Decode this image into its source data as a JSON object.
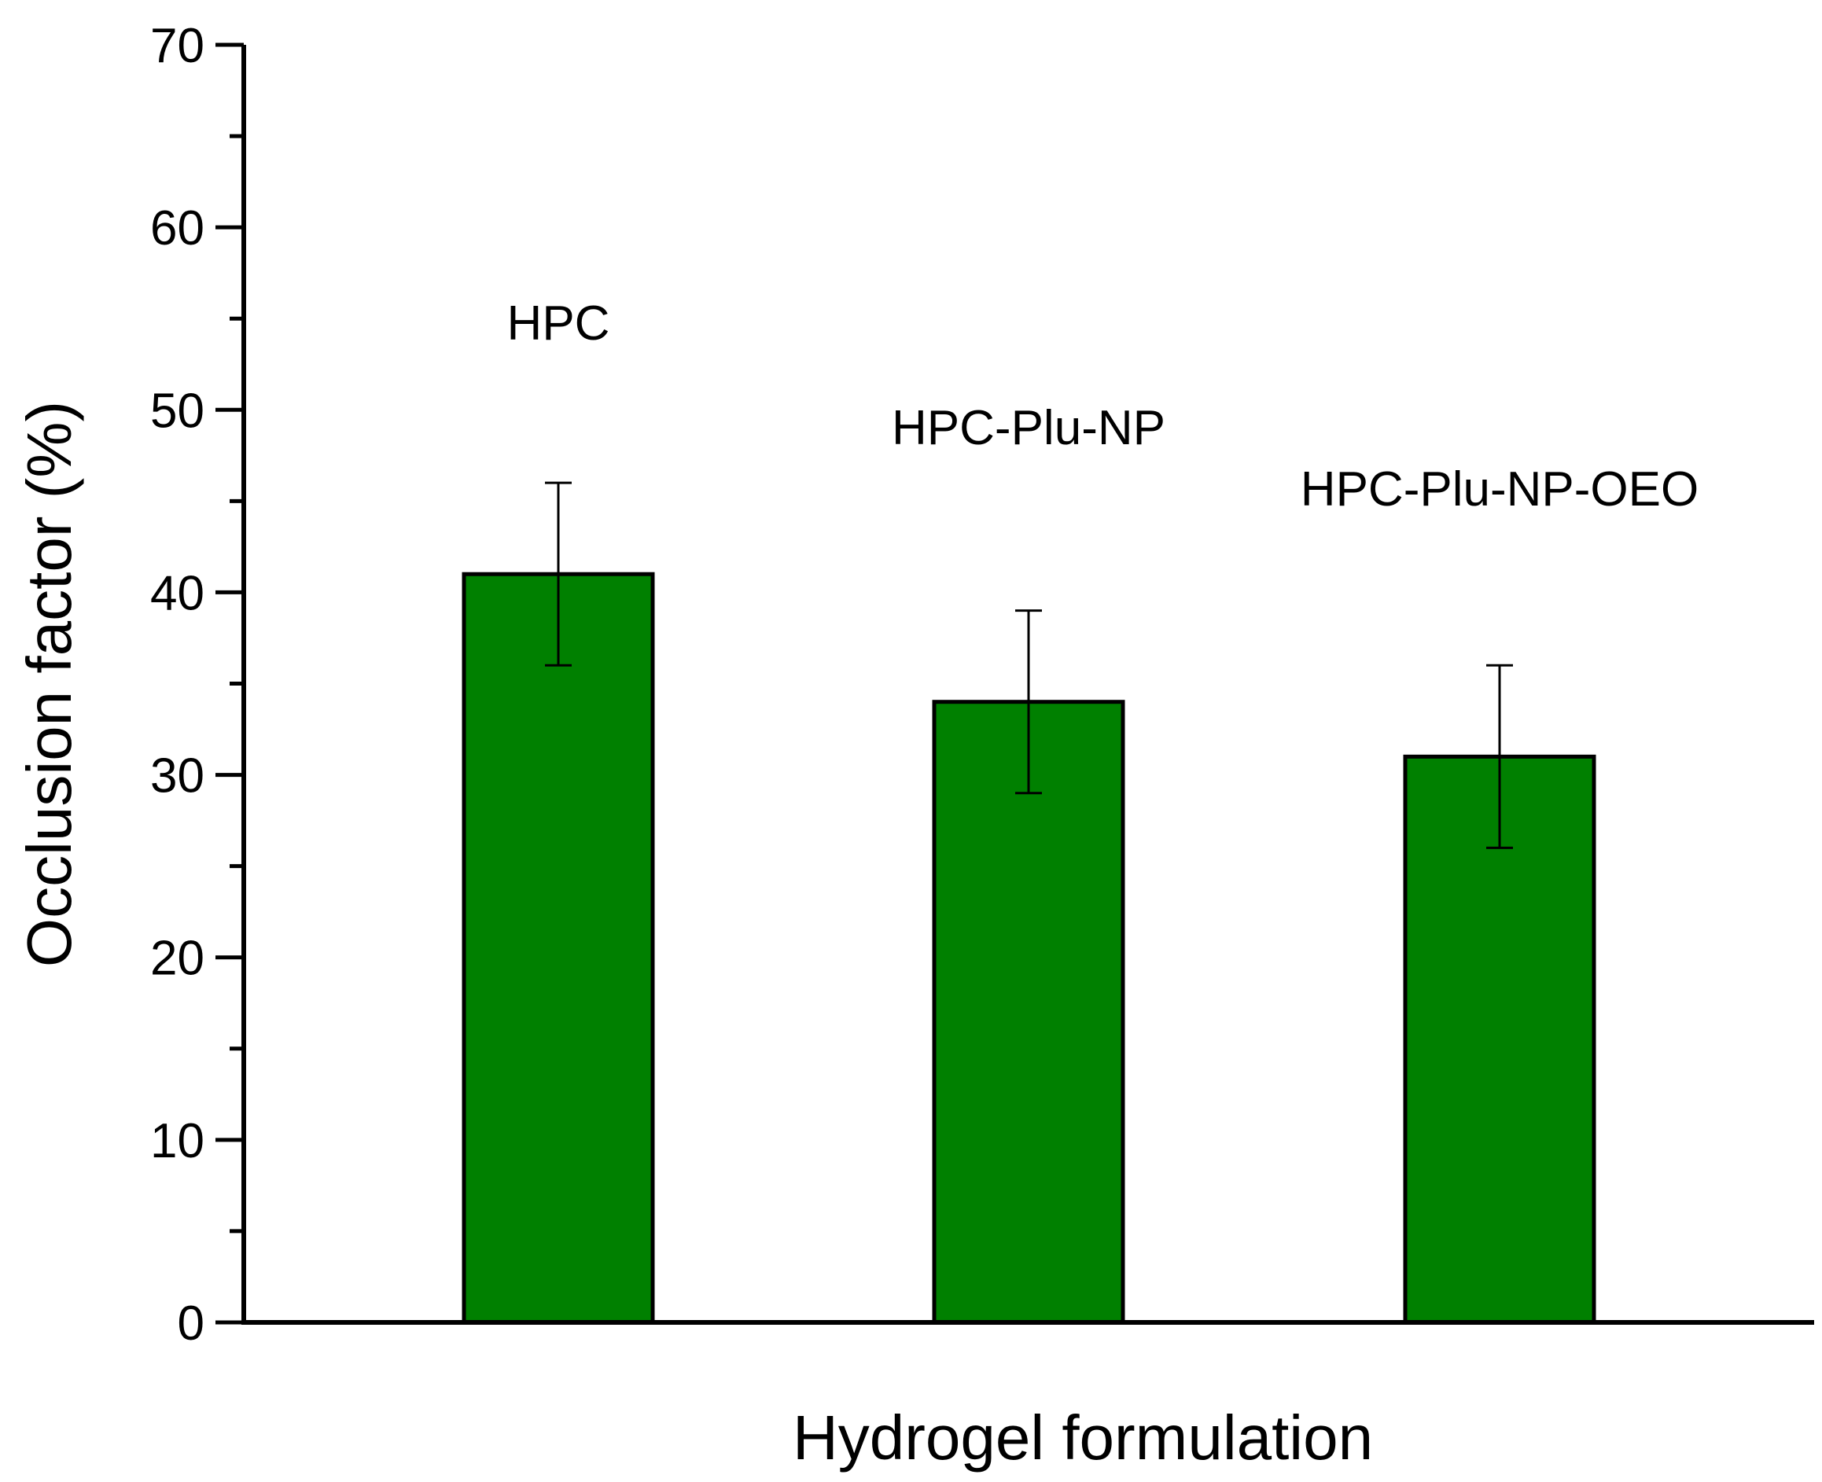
{
  "chart_data": {
    "type": "bar",
    "categories": [
      "HPC",
      "HPC-Plu-NP",
      "HPC-Plu-NP-OEO"
    ],
    "values": [
      41,
      34,
      31
    ],
    "errors": [
      5,
      5,
      5
    ],
    "xlabel": "Hydrogel formulation",
    "ylabel": "Occlusion factor (%)",
    "ylim": [
      0,
      70
    ],
    "yticks": [
      0,
      10,
      20,
      30,
      40,
      50,
      60,
      70
    ],
    "ytick_labels": [
      "0",
      "10",
      "20",
      "30",
      "40",
      "50",
      "60",
      "70"
    ],
    "minor_ytick_step": 5,
    "grid": false,
    "legend": "none",
    "bar_color": "#008000",
    "edge_color": "#000000",
    "category_labels_above_bars": true
  }
}
